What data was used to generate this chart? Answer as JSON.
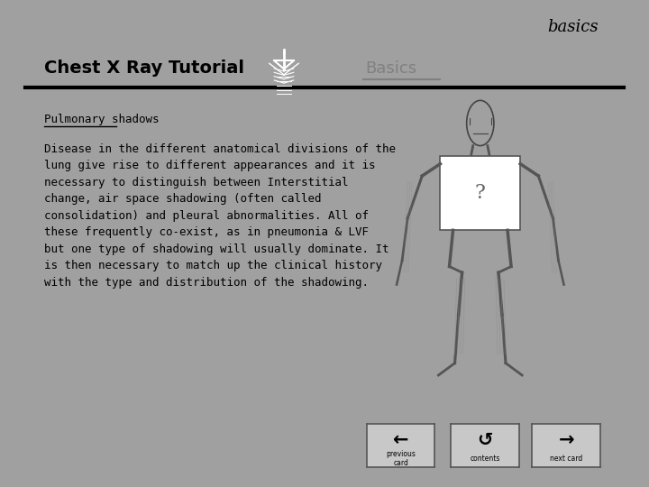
{
  "bg_color": "#a0a0a0",
  "main_bg": "#ffffff",
  "basics_label": "basics",
  "header_title": "Chest X Ray Tutorial",
  "header_subtitle": "Basics",
  "section_title": "Pulmonary shadows",
  "body_text": "Disease in the different anatomical divisions of the\nlung give rise to different appearances and it is\nnecessary to distinguish between Interstitial\nchange, air space shadowing (often called\nconsolidation) and pleural abnormalities. All of\nthese frequently co-exist, as in pneumonia & LVF\nbut one type of shadowing will usually dominate. It\nis then necessary to match up the clinical history\nwith the type and distribution of the shadowing.",
  "text_color": "#000000",
  "header_title_color": "#000000",
  "subtitle_color": "#808080",
  "basics_color": "#000000",
  "nav_texts": [
    "previous\ncard",
    "contents",
    "next card"
  ]
}
